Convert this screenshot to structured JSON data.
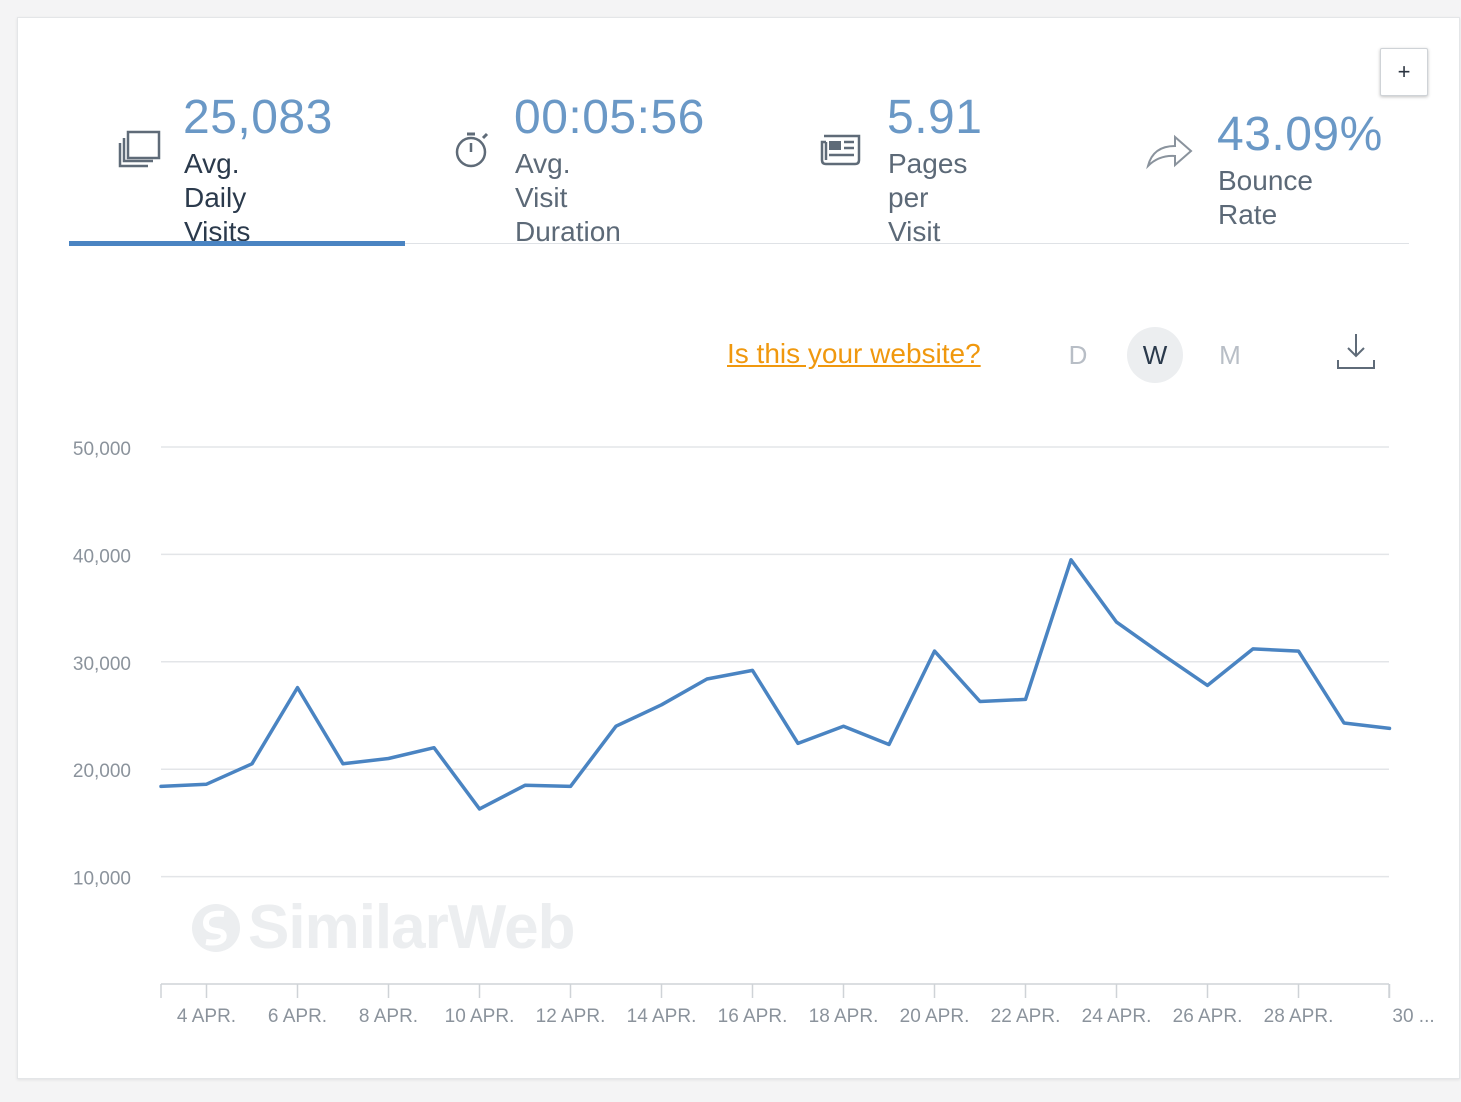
{
  "metrics": [
    {
      "value": "25,083",
      "label_line1": "Avg. Daily",
      "label_line2": "Visits",
      "icon": "visits-icon"
    },
    {
      "value": "00:05:56",
      "label_line1": "Avg. Visit",
      "label_line2": "Duration",
      "icon": "stopwatch-icon"
    },
    {
      "value": "5.91",
      "label_line1": "Pages per",
      "label_line2": "Visit",
      "icon": "newspaper-icon"
    },
    {
      "value": "43.09%",
      "label_line1": "Bounce Rate",
      "label_line2": "",
      "icon": "share-arrow-icon"
    }
  ],
  "controls": {
    "plus_label": "+",
    "own_site_link": "Is this your website?",
    "granularity": [
      "D",
      "W",
      "M"
    ],
    "selected_granularity": "W"
  },
  "watermark": "SimilarWeb",
  "colors": {
    "line": "#4a84c2",
    "accent": "#6a98c6",
    "link": "#f0980e",
    "grid": "#e3e5e8"
  },
  "chart_data": {
    "type": "line",
    "x": [
      "3 APR.",
      "4 APR.",
      "5 APR.",
      "6 APR.",
      "7 APR.",
      "8 APR.",
      "9 APR.",
      "10 APR.",
      "11 APR.",
      "12 APR.",
      "13 APR.",
      "14 APR.",
      "15 APR.",
      "16 APR.",
      "17 APR.",
      "18 APR.",
      "19 APR.",
      "20 APR.",
      "21 APR.",
      "22 APR.",
      "23 APR.",
      "24 APR.",
      "25 APR.",
      "26 APR.",
      "27 APR.",
      "28 APR.",
      "29 APR.",
      "30 APR."
    ],
    "series": [
      {
        "values": [
          18400,
          18600,
          20500,
          27600,
          20500,
          21000,
          22000,
          16300,
          18500,
          18400,
          24000,
          26000,
          28400,
          29200,
          22400,
          24000,
          22300,
          31000,
          26300,
          26500,
          39500,
          33700,
          30700,
          27800,
          31200,
          31000,
          24300,
          23800
        ]
      }
    ],
    "x_tick_labels": [
      "4 APR.",
      "6 APR.",
      "8 APR.",
      "10 APR.",
      "12 APR.",
      "14 APR.",
      "16 APR.",
      "18 APR.",
      "20 APR.",
      "22 APR.",
      "24 APR.",
      "26 APR.",
      "28 APR.",
      "30 ..."
    ],
    "y_ticks": [
      "10,000",
      "20,000",
      "30,000",
      "40,000",
      "50,000"
    ],
    "ylim": [
      0,
      50000
    ],
    "grid": true,
    "title": "",
    "xlabel": "",
    "ylabel": ""
  }
}
